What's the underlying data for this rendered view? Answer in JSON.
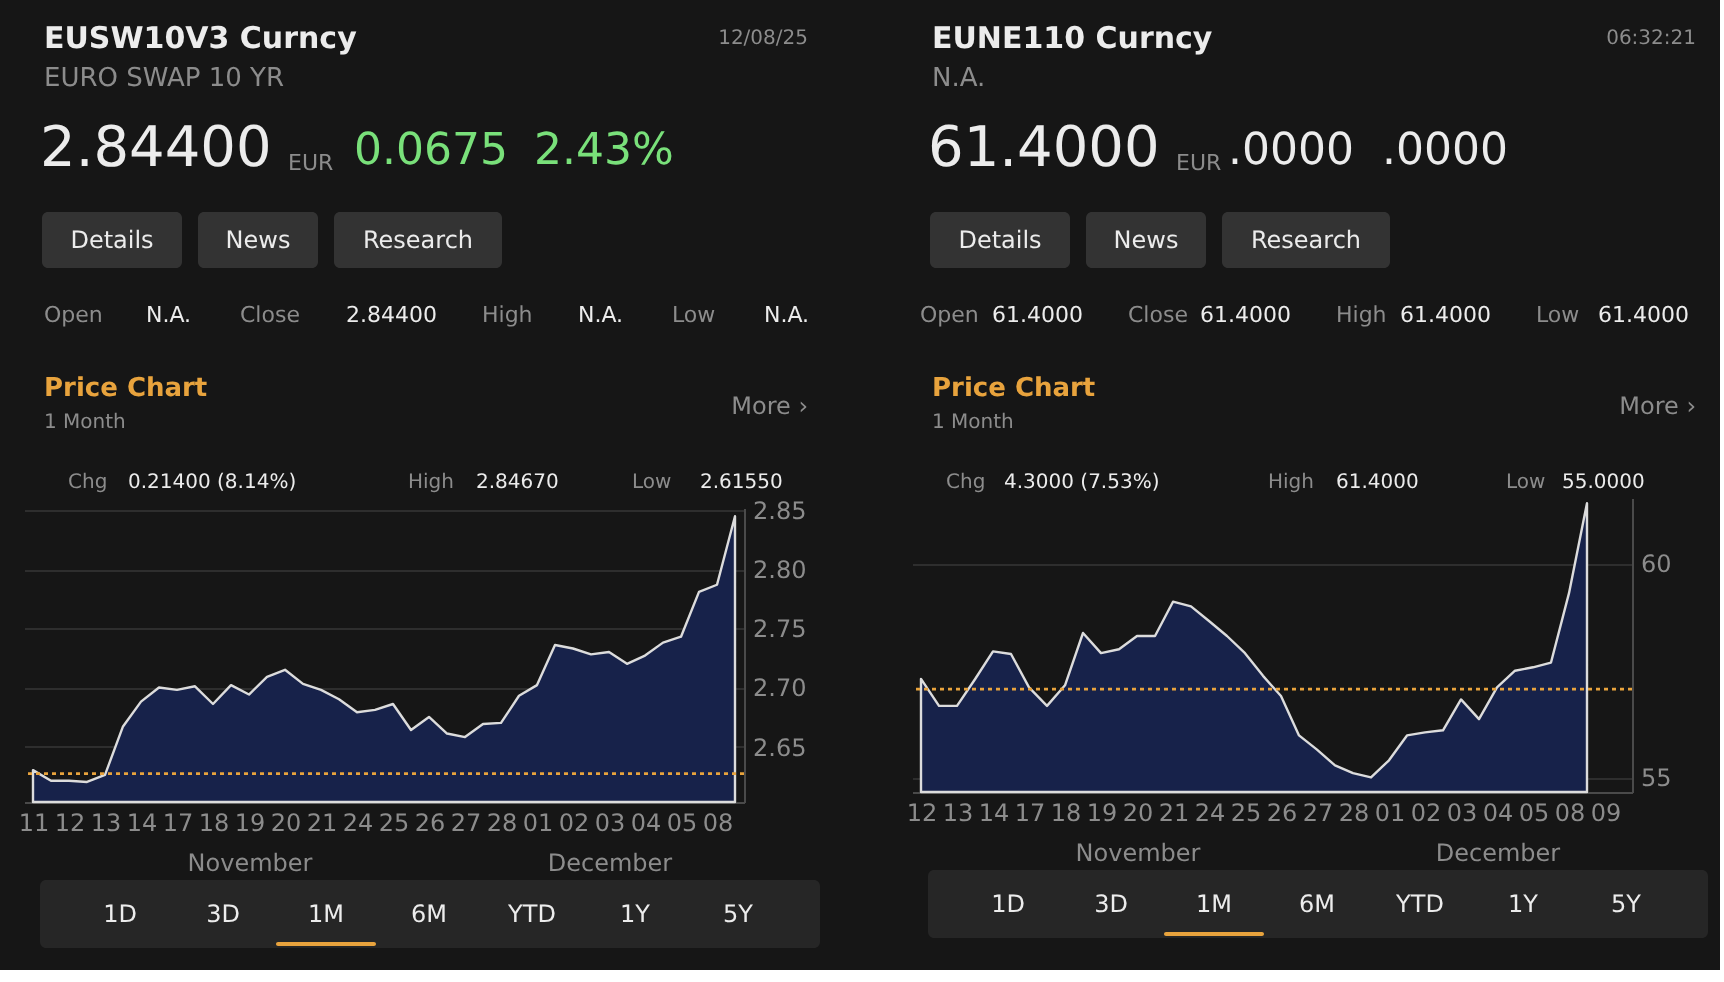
{
  "chart_data": [
    {
      "type": "area",
      "title": "EUSW10V3 Curncy",
      "subtitle": "EURO SWAP 10 YR",
      "annotations": [
        "12/08/25",
        "2.84400",
        "EUR",
        "0.0675",
        "2.43%",
        "Details",
        "News",
        "Research",
        "Open",
        "N.A.",
        "Close",
        "2.84400",
        "High",
        "N.A.",
        "Low",
        "N.A.",
        "Price Chart",
        "1 Month",
        "More ›",
        "Chg",
        "0.21400 (8.14%)",
        "High",
        "2.84670",
        "Low",
        "2.61550",
        "1D",
        "3D",
        "1M",
        "6M",
        "YTD",
        "1Y",
        "5Y"
      ],
      "categories": [
        "11",
        null,
        "12",
        null,
        "13",
        null,
        "14",
        null,
        "17",
        null,
        "18",
        null,
        "19\nNovember",
        null,
        "20",
        null,
        "21",
        null,
        "24",
        null,
        "25",
        null,
        "26",
        null,
        "27",
        null,
        "28",
        null,
        "01",
        null,
        "02",
        null,
        "03\nDecember",
        null,
        "04",
        null,
        "05",
        null,
        "08",
        null
      ],
      "series": [
        {
          "color": "#17224a",
          "values": [
            2.63,
            2.621,
            2.621,
            2.62,
            2.626,
            2.667,
            2.688,
            2.7,
            2.698,
            2.701,
            2.686,
            2.702,
            2.694,
            2.709,
            2.715,
            2.703,
            2.698,
            2.69,
            2.679,
            2.681,
            2.686,
            2.664,
            2.675,
            2.661,
            2.658,
            2.669,
            2.67,
            2.693,
            2.702,
            2.736,
            2.733,
            2.728,
            2.73,
            2.72,
            2.727,
            2.738,
            2.743,
            2.781,
            2.787,
            2.845
          ]
        }
      ],
      "ylim": [
        2.603,
        2.852
      ],
      "yticks": [
        {
          "value": 2.65,
          "label": "2.65"
        },
        {
          "value": 2.7,
          "label": "2.70"
        },
        {
          "value": 2.75,
          "label": "2.75"
        },
        {
          "value": 2.8,
          "label": "2.80"
        },
        {
          "value": 2.85,
          "label": "2.85"
        }
      ],
      "grid": "y",
      "ref_lines": [
        {
          "axis": "y",
          "value": 2.627,
          "color": "#e8a33d",
          "line_style": "dotted"
        }
      ]
    },
    {
      "type": "area",
      "title": "EUNE110 Curncy",
      "subtitle": "N.A.",
      "annotations": [
        "06:32:21",
        "61.4000",
        "EUR",
        ".0000",
        ".0000",
        "Details",
        "News",
        "Research",
        "Open",
        "61.4000",
        "Close",
        "61.4000",
        "High",
        "61.4000",
        "Low",
        "61.4000",
        "Price Chart",
        "1 Month",
        "More ›",
        "Chg",
        "4.3000 (7.53%)",
        "High",
        "61.4000",
        "Low",
        "55.0000",
        "1D",
        "3D",
        "1M",
        "6M",
        "YTD",
        "1Y",
        "5Y"
      ],
      "categories": [
        "12",
        null,
        "13",
        null,
        "14",
        null,
        "17",
        null,
        "18",
        null,
        "19",
        null,
        "20\nNovember",
        null,
        "21",
        null,
        "24",
        null,
        "25",
        null,
        "26",
        null,
        "27",
        null,
        "28",
        null,
        "01",
        null,
        "02",
        null,
        "03",
        null,
        "04\nDecember",
        null,
        "05",
        null,
        "08",
        null,
        "09",
        null
      ],
      "series": [
        {
          "color": "#17224a",
          "values": [
            57.3,
            56.67,
            56.67,
            57.29,
            57.94,
            57.88,
            57.1,
            56.67,
            57.15,
            58.37,
            57.9,
            57.99,
            58.3,
            58.3,
            59.1,
            58.99,
            58.65,
            58.3,
            57.9,
            57.37,
            56.9,
            55.98,
            55.65,
            55.28,
            55.1,
            55.0,
            55.4,
            55.98,
            56.05,
            56.1,
            56.82,
            56.36,
            57.1,
            57.49,
            57.57,
            57.68,
            59.3,
            61.4,
            null,
            null
          ]
        }
      ],
      "ylim": [
        54.66,
        61.52
      ],
      "yticks": [
        55,
        60
      ],
      "grid": "y",
      "ref_lines": [
        {
          "axis": "y",
          "value": 57.06,
          "color": "#e8a33d",
          "line_style": "dotted"
        }
      ]
    }
  ]
}
